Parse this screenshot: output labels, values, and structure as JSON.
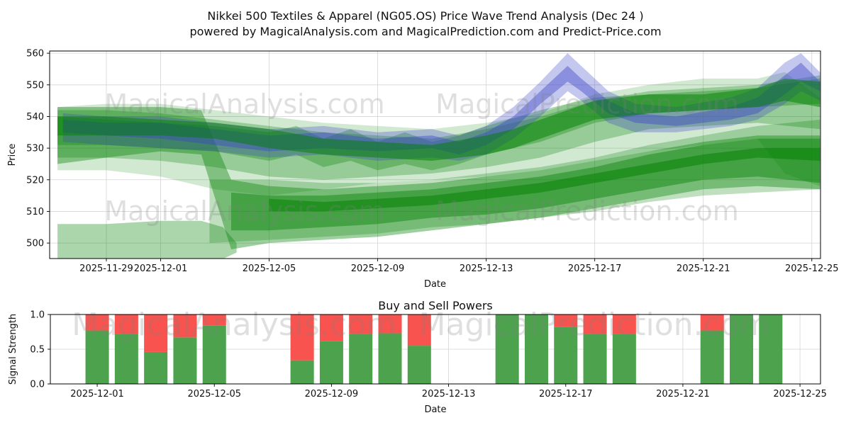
{
  "figure": {
    "title_line1": "Nikkei 500 Textiles & Apparel (NG05.OS) Price Wave Trend Analysis (Dec 24 )",
    "title_line2": "powered by MagicalAnalysis.com and MagicalPrediction.com and Predict-Price.com"
  },
  "watermarks": {
    "analysis": "MagicalAnalysis.com",
    "prediction": "MagicalPrediction.com"
  },
  "palette": {
    "band_green": "#008000",
    "band_blue": "#3c46c8",
    "buy_green": "#4da24d",
    "sell_red": "#f8534e",
    "grid": "#d4d4d4",
    "spine": "#000000",
    "tick_text": "#111111",
    "watermark": "#808080"
  },
  "chart_data": [
    {
      "type": "area",
      "name": "price-wave-trend",
      "xlabel": "Date",
      "ylabel": "Price",
      "x_epoch": "2025-11-27",
      "xlim": [
        -0.09,
        28.32
      ],
      "ylim": [
        495.1,
        560.7
      ],
      "yticks": [
        500,
        510,
        520,
        530,
        540,
        550,
        560
      ],
      "xticks": [
        {
          "label": "2025-11-29",
          "d": 2
        },
        {
          "label": "2025-12-01",
          "d": 4
        },
        {
          "label": "2025-12-05",
          "d": 8
        },
        {
          "label": "2025-12-09",
          "d": 12
        },
        {
          "label": "2025-12-13",
          "d": 16
        },
        {
          "label": "2025-12-17",
          "d": 20
        },
        {
          "label": "2025-12-21",
          "d": 24
        },
        {
          "label": "2025-12-25",
          "d": 28
        }
      ],
      "bands": [
        {
          "name": "lower-left-band",
          "color": "#008000",
          "opacity": 0.33,
          "x": [
            0.2,
            2,
            4,
            5.5,
            6.3,
            6.8
          ],
          "top": [
            506,
            506,
            507,
            507,
            505,
            500
          ],
          "bot": [
            493,
            493,
            494,
            495,
            495,
            497
          ]
        },
        {
          "name": "lower-wide-band",
          "color": "#008000",
          "opacity": 0.25,
          "x": [
            5.8,
            8,
            10,
            12,
            14,
            16,
            18,
            20,
            22,
            24,
            26,
            28.3
          ],
          "top": [
            520,
            520,
            519,
            519,
            520,
            522,
            524,
            527,
            531,
            534,
            537,
            539
          ],
          "bot": [
            500,
            501,
            502,
            503,
            505,
            506,
            508,
            510,
            513,
            515,
            516,
            517
          ]
        },
        {
          "name": "waterfall-band",
          "color": "#008000",
          "opacity": 0.38,
          "x": [
            0.2,
            2,
            4,
            5.5,
            6.6,
            8,
            10,
            12,
            14,
            16,
            18,
            20,
            22,
            24,
            26,
            28.3
          ],
          "top": [
            543,
            543,
            543,
            542,
            520,
            518,
            517,
            518,
            519,
            521,
            523,
            526,
            529,
            532,
            534,
            534
          ],
          "bot": [
            525,
            527,
            529,
            528,
            498,
            500,
            501,
            502,
            504,
            506,
            508,
            511,
            514,
            517,
            518,
            517
          ]
        },
        {
          "name": "lower-mid-band",
          "color": "#008000",
          "opacity": 0.42,
          "x": [
            6.6,
            8,
            10,
            12,
            14,
            16,
            18,
            20,
            22,
            24,
            26,
            28.3
          ],
          "top": [
            516,
            515,
            515,
            516,
            517,
            519,
            521,
            524,
            528,
            531,
            533,
            533
          ],
          "bot": [
            504,
            504,
            505,
            506,
            508,
            509,
            511,
            514,
            517,
            520,
            521,
            519
          ]
        },
        {
          "name": "lower-dark-stripe",
          "color": "#008000",
          "opacity": 0.5,
          "x": [
            8,
            10,
            12,
            14,
            16,
            18,
            20,
            22,
            24,
            26,
            28.3
          ],
          "top": [
            514,
            513,
            514,
            515,
            517,
            519,
            522,
            525,
            528,
            530,
            530
          ],
          "bot": [
            510,
            510,
            511,
            512,
            514,
            516,
            519,
            522,
            525,
            527,
            526
          ]
        },
        {
          "name": "upper-outer-band",
          "color": "#008000",
          "opacity": 0.18,
          "x": [
            0.2,
            2,
            4,
            6,
            8,
            10,
            12,
            14,
            16,
            18,
            20,
            22,
            24,
            26,
            27,
            28.3
          ],
          "top": [
            543,
            544,
            544,
            542,
            540,
            538,
            537,
            536,
            538,
            541,
            547,
            550,
            552,
            552,
            554,
            546
          ],
          "bot": [
            523,
            523,
            521,
            517,
            515,
            517,
            519,
            520,
            521,
            523,
            526,
            529,
            531,
            533,
            522,
            518
          ]
        },
        {
          "name": "upper-mid-band",
          "color": "#008000",
          "opacity": 0.28,
          "x": [
            0.2,
            2,
            4,
            6,
            8,
            10,
            12,
            14,
            16,
            18,
            20,
            22,
            24,
            26,
            28.3
          ],
          "top": [
            542,
            542,
            541,
            539,
            537,
            535,
            534,
            533,
            536,
            540,
            545,
            548,
            549,
            550,
            553
          ],
          "bot": [
            527,
            527,
            526,
            524,
            521,
            520,
            521,
            522,
            524,
            527,
            532,
            536,
            537,
            538,
            536
          ]
        },
        {
          "name": "upper-inner-band",
          "color": "#008000",
          "opacity": 0.3,
          "x": [
            0.2,
            2,
            4,
            6,
            8,
            9,
            10,
            11,
            12,
            13,
            14,
            15,
            16,
            18,
            20,
            22,
            24,
            26,
            28.3
          ],
          "top": [
            540,
            539,
            538,
            537,
            535,
            537,
            533,
            536,
            532,
            535,
            532,
            534,
            537,
            542,
            546,
            547,
            548,
            549,
            552
          ],
          "bot": [
            531,
            531,
            530,
            529,
            526,
            528,
            524,
            526,
            523,
            525,
            523,
            525,
            528,
            532,
            538,
            541,
            542,
            543,
            544
          ]
        },
        {
          "name": "forecast-blue-outer",
          "color": "#3c46c8",
          "opacity": 0.3,
          "x": [
            0.4,
            2,
            4,
            6,
            8,
            10,
            12,
            14,
            15,
            16,
            17,
            18,
            19,
            19.5,
            20.5,
            21.5,
            23,
            25,
            26,
            27,
            27.6,
            28.3
          ],
          "top": [
            541,
            540,
            540,
            538,
            536,
            537,
            535,
            536,
            534,
            537,
            543,
            551,
            560,
            556,
            548,
            544,
            543,
            546,
            549,
            557,
            560,
            554
          ],
          "bot": [
            532,
            531,
            530,
            529,
            527,
            528,
            526,
            527,
            526,
            528,
            533,
            540,
            548,
            545,
            538,
            535,
            535,
            537,
            539,
            544,
            548,
            545
          ]
        },
        {
          "name": "forecast-blue-core",
          "color": "#3c46c8",
          "opacity": 0.42,
          "x": [
            0.4,
            2,
            4,
            6,
            8,
            10,
            12,
            14,
            15,
            16,
            17,
            18,
            19,
            19.5,
            20.5,
            21.5,
            23,
            25,
            26,
            27,
            27.6,
            28.3
          ],
          "top": [
            539,
            538,
            538,
            536,
            534,
            535,
            533,
            534,
            532,
            535,
            540,
            548,
            556,
            552,
            545,
            541,
            540,
            543,
            546,
            553,
            557,
            551
          ],
          "bot": [
            535,
            534,
            533,
            531,
            529,
            530,
            529,
            530,
            528,
            531,
            536,
            544,
            551,
            548,
            541,
            538,
            537,
            539,
            541,
            547,
            551,
            548
          ]
        },
        {
          "name": "trend-dark-core",
          "color": "#008000",
          "opacity": 0.5,
          "x": [
            0.2,
            2,
            4,
            6,
            8,
            10,
            12,
            14,
            16,
            17,
            18,
            19,
            20,
            22,
            24,
            26,
            27,
            28.3
          ],
          "top": [
            540,
            540,
            539,
            538,
            536,
            533,
            532,
            531,
            534,
            536,
            539,
            542,
            545,
            547,
            547,
            549,
            552,
            551
          ],
          "bot": [
            534,
            534,
            534,
            533,
            530,
            528,
            527,
            526,
            528,
            530,
            533,
            536,
            539,
            541,
            542,
            543,
            545,
            543
          ]
        }
      ]
    },
    {
      "type": "bar",
      "name": "buy-sell-powers",
      "title": "Buy and Sell Powers",
      "xlabel": "Date",
      "ylabel": "Signal Strength",
      "x_epoch": "2025-12-01",
      "xlim": [
        -1.6,
        24.7
      ],
      "ylim": [
        0,
        1
      ],
      "ytick_labels": [
        "0.0",
        "0.5",
        "1.0"
      ],
      "yticks": [
        0.0,
        0.5,
        1.0
      ],
      "bar_width_days": 0.8,
      "xticks": [
        {
          "label": "2025-12-01",
          "d": 0
        },
        {
          "label": "2025-12-05",
          "d": 4
        },
        {
          "label": "2025-12-09",
          "d": 8
        },
        {
          "label": "2025-12-13",
          "d": 12
        },
        {
          "label": "2025-12-17",
          "d": 16
        },
        {
          "label": "2025-12-21",
          "d": 20
        },
        {
          "label": "2025-12-25",
          "d": 24
        }
      ],
      "bars": [
        {
          "date": "2025-12-01",
          "d": 0,
          "buy": 0.77,
          "sell": 0.23
        },
        {
          "date": "2025-12-02",
          "d": 1,
          "buy": 0.72,
          "sell": 0.28
        },
        {
          "date": "2025-12-03",
          "d": 2,
          "buy": 0.46,
          "sell": 0.54
        },
        {
          "date": "2025-12-04",
          "d": 3,
          "buy": 0.67,
          "sell": 0.33
        },
        {
          "date": "2025-12-05",
          "d": 4,
          "buy": 0.84,
          "sell": 0.16
        },
        {
          "date": "2025-12-08",
          "d": 7,
          "buy": 0.34,
          "sell": 0.66
        },
        {
          "date": "2025-12-09",
          "d": 8,
          "buy": 0.62,
          "sell": 0.38
        },
        {
          "date": "2025-12-10",
          "d": 9,
          "buy": 0.72,
          "sell": 0.28
        },
        {
          "date": "2025-12-11",
          "d": 10,
          "buy": 0.73,
          "sell": 0.27
        },
        {
          "date": "2025-12-12",
          "d": 11,
          "buy": 0.55,
          "sell": 0.45
        },
        {
          "date": "2025-12-15",
          "d": 14,
          "buy": 1.0,
          "sell": 0.0
        },
        {
          "date": "2025-12-16",
          "d": 15,
          "buy": 1.0,
          "sell": 0.0
        },
        {
          "date": "2025-12-17",
          "d": 16,
          "buy": 0.82,
          "sell": 0.18
        },
        {
          "date": "2025-12-18",
          "d": 17,
          "buy": 0.72,
          "sell": 0.28
        },
        {
          "date": "2025-12-19",
          "d": 18,
          "buy": 0.72,
          "sell": 0.28
        },
        {
          "date": "2025-12-22",
          "d": 21,
          "buy": 0.77,
          "sell": 0.23
        },
        {
          "date": "2025-12-23",
          "d": 22,
          "buy": 1.0,
          "sell": 0.0
        },
        {
          "date": "2025-12-24",
          "d": 23,
          "buy": 1.0,
          "sell": 0.0
        }
      ]
    }
  ]
}
